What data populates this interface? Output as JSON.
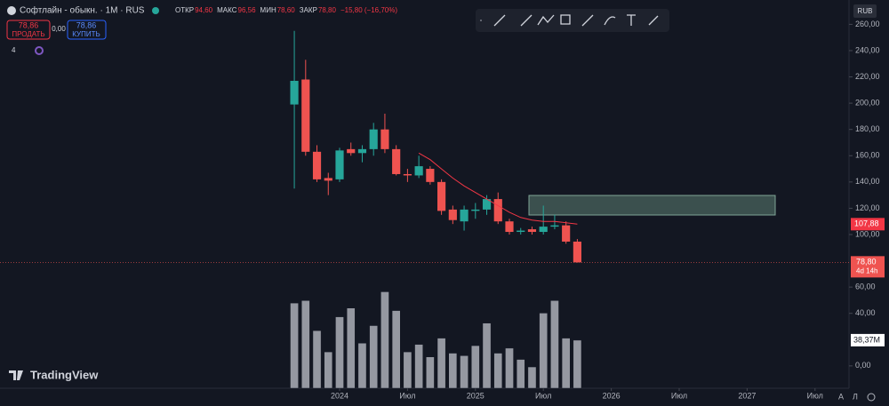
{
  "header": {
    "title": "Софтлайн - обыкн. · 1M · RUS",
    "ohlc": [
      {
        "label": "ОТКР",
        "value": "94,60"
      },
      {
        "label": "МАКС",
        "value": "96,56"
      },
      {
        "label": "МИН",
        "value": "78,60"
      },
      {
        "label": "ЗАКР",
        "value": "78,80"
      }
    ],
    "change": "−15,80 (−16,70%)",
    "sell": {
      "price": "78,86",
      "label": "ПРОДАТЬ"
    },
    "spread": "0,00",
    "buy": {
      "price": "78,86",
      "label": "КУПИТЬ"
    },
    "indicators_count": "4",
    "currency": "RUB",
    "brand": "TradingView",
    "buttons": [
      "A",
      "Л"
    ]
  },
  "chart_data": {
    "type": "candlestick",
    "x": [
      "2023-09",
      "2023-10",
      "2023-11",
      "2023-12",
      "2024-01",
      "2024-02",
      "2024-03",
      "2024-04",
      "2024-05",
      "2024-06",
      "2024-07",
      "2024-08",
      "2024-09",
      "2024-10",
      "2024-11",
      "2024-12",
      "2025-01",
      "2025-02",
      "2025-03",
      "2025-04",
      "2025-05",
      "2025-06",
      "2025-07",
      "2025-08",
      "2025-09",
      "2025-10"
    ],
    "open": [
      199,
      218,
      163,
      143,
      142,
      165,
      162,
      165,
      180,
      165,
      146,
      145,
      150,
      140,
      119,
      110,
      118,
      119,
      127,
      110,
      102,
      104,
      102,
      106,
      107,
      94.6
    ],
    "high": [
      255,
      233,
      168,
      147,
      166,
      170,
      168,
      185,
      192,
      168,
      150,
      160,
      152,
      142,
      122,
      122,
      124,
      130,
      132,
      112,
      105,
      106,
      122,
      115,
      110,
      96.56
    ],
    "low": [
      135,
      160,
      140,
      130,
      140,
      160,
      155,
      160,
      162,
      145,
      140,
      143,
      138,
      115,
      108,
      103,
      112,
      115,
      108,
      100,
      100,
      100,
      100,
      104,
      93,
      78.6
    ],
    "close": [
      217,
      163,
      142,
      141,
      164,
      162,
      165,
      180,
      165,
      146,
      145,
      152,
      140,
      118,
      111,
      119,
      119,
      127,
      110,
      102,
      103,
      102,
      106,
      107,
      94.6,
      78.8
    ],
    "volume": [
      68,
      70,
      46,
      29,
      57,
      64,
      36,
      50,
      77,
      62,
      29,
      35,
      25,
      40,
      28,
      26,
      34,
      52,
      28,
      32,
      23,
      17,
      60,
      70,
      40,
      38.37
    ],
    "ma": [
      null,
      null,
      null,
      null,
      null,
      null,
      null,
      null,
      null,
      null,
      null,
      162,
      157,
      150,
      143,
      137,
      132,
      127,
      122,
      117,
      113,
      111,
      110,
      110,
      109,
      107.88
    ],
    "up_color": "#26a69a",
    "down_color": "#ef5350",
    "volume_color": "#9598a1",
    "ma_color": "#f23645",
    "xlim": [
      "2021-07",
      "2027-10"
    ],
    "xticks": [
      {
        "value": "2024-01",
        "label": "2024"
      },
      {
        "value": "2024-07",
        "label": "Июл"
      },
      {
        "value": "2025-01",
        "label": "2025"
      },
      {
        "value": "2025-07",
        "label": "Июл"
      },
      {
        "value": "2026-01",
        "label": "2026"
      },
      {
        "value": "2026-07",
        "label": "Июл"
      },
      {
        "value": "2027-01",
        "label": "2027"
      },
      {
        "value": "2027-07",
        "label": "Июл"
      }
    ],
    "ylim": [
      -17,
      265
    ],
    "yticks": [
      {
        "value": 260,
        "label": "260,00"
      },
      {
        "value": 240,
        "label": "240,00"
      },
      {
        "value": 220,
        "label": "220,00"
      },
      {
        "value": 200,
        "label": "200,00"
      },
      {
        "value": 180,
        "label": "180,00"
      },
      {
        "value": 160,
        "label": "160,00"
      },
      {
        "value": 140,
        "label": "140,00"
      },
      {
        "value": 120,
        "label": "120,00"
      },
      {
        "value": 100,
        "label": "100,00"
      },
      {
        "value": 60,
        "label": "60,00"
      },
      {
        "value": 40,
        "label": "40,00"
      },
      {
        "value": 0,
        "label": "0,00"
      }
    ],
    "volume_lim": [
      0,
      100
    ],
    "ma_label": "107,88",
    "last_close_label": "78,80",
    "countdown": "4d 14h",
    "volume_label": "38,37M"
  }
}
